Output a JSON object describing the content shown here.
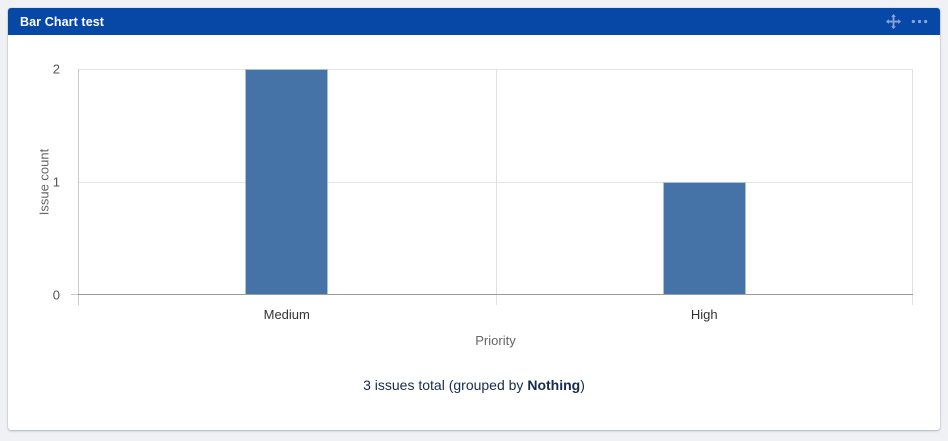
{
  "page": {
    "background_color": "#f0f1f4"
  },
  "widget": {
    "title": "Bar Chart test",
    "header_color": "#0747a6",
    "header_icon_color": "#8aa4d8",
    "header_icons": [
      "move-icon",
      "more-menu-icon"
    ],
    "footer": {
      "prefix": "3 issues total (grouped by ",
      "bold": "Nothing",
      "suffix": ")"
    }
  },
  "chart_data": {
    "type": "bar",
    "title": "",
    "categories": [
      "Medium",
      "High"
    ],
    "values": [
      2,
      1
    ],
    "xlabel": "Priority",
    "ylabel": "Issue count",
    "ylim": [
      0,
      2
    ],
    "yticks": [
      0,
      1,
      2
    ],
    "bar_color": "#4572a7",
    "grid": true,
    "legend": "none",
    "annotation": "3 issues total (grouped by Nothing)"
  }
}
